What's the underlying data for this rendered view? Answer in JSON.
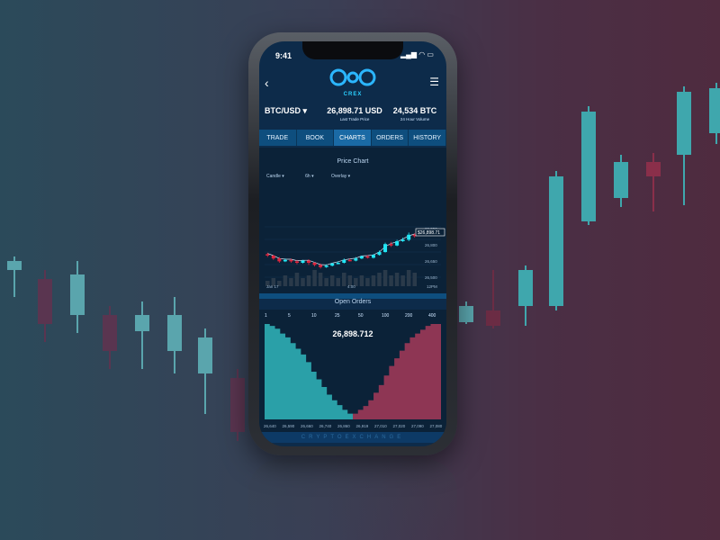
{
  "status": {
    "time": "9:41",
    "icons": "▂▄▆ ◠ ▭"
  },
  "nav": {
    "back_icon": "‹",
    "menu_icon": "☰"
  },
  "brand": {
    "logo_text": "CREX",
    "footer": "CRYPTOEXCHANGE"
  },
  "ticker": {
    "pair": "BTC/USD",
    "last_trade_price": "26,898.71 USD",
    "last_trade_label": "Last Trade Price",
    "volume": "24,534 BTC",
    "volume_label": "24 Hour Volume"
  },
  "tabs": [
    {
      "label": "TRADE",
      "active": false
    },
    {
      "label": "BOOK",
      "active": false
    },
    {
      "label": "CHARTS",
      "active": true
    },
    {
      "label": "ORDERS",
      "active": false
    },
    {
      "label": "HISTORY",
      "active": false
    }
  ],
  "price_chart": {
    "title": "Price Chart",
    "controls": {
      "candle": "Candle",
      "interval": "6h",
      "overlay": "Overlay"
    },
    "price_tag": "$26,898.71",
    "y_labels": [
      "26,950",
      "26,800",
      "26,650",
      "26,500",
      "26,350"
    ],
    "x_labels": [
      "Jan 17",
      "4:00",
      "12PM"
    ],
    "candles": [
      {
        "o": 26620,
        "c": 26600,
        "h": 26640,
        "l": 26580
      },
      {
        "o": 26600,
        "c": 26560,
        "h": 26610,
        "l": 26540
      },
      {
        "o": 26560,
        "c": 26520,
        "h": 26580,
        "l": 26500
      },
      {
        "o": 26520,
        "c": 26540,
        "h": 26560,
        "l": 26510
      },
      {
        "o": 26540,
        "c": 26520,
        "h": 26560,
        "l": 26500
      },
      {
        "o": 26520,
        "c": 26500,
        "h": 26540,
        "l": 26480
      },
      {
        "o": 26500,
        "c": 26530,
        "h": 26540,
        "l": 26490
      },
      {
        "o": 26530,
        "c": 26500,
        "h": 26550,
        "l": 26470
      },
      {
        "o": 26500,
        "c": 26470,
        "h": 26510,
        "l": 26450
      },
      {
        "o": 26470,
        "c": 26440,
        "h": 26490,
        "l": 26420
      },
      {
        "o": 26440,
        "c": 26460,
        "h": 26480,
        "l": 26430
      },
      {
        "o": 26460,
        "c": 26490,
        "h": 26500,
        "l": 26450
      },
      {
        "o": 26490,
        "c": 26500,
        "h": 26520,
        "l": 26480
      },
      {
        "o": 26500,
        "c": 26540,
        "h": 26560,
        "l": 26490
      },
      {
        "o": 26540,
        "c": 26530,
        "h": 26560,
        "l": 26520
      },
      {
        "o": 26530,
        "c": 26560,
        "h": 26580,
        "l": 26520
      },
      {
        "o": 26560,
        "c": 26590,
        "h": 26600,
        "l": 26550
      },
      {
        "o": 26590,
        "c": 26570,
        "h": 26610,
        "l": 26560
      },
      {
        "o": 26570,
        "c": 26610,
        "h": 26620,
        "l": 26560
      },
      {
        "o": 26610,
        "c": 26650,
        "h": 26670,
        "l": 26600
      },
      {
        "o": 26650,
        "c": 26760,
        "h": 26780,
        "l": 26640
      },
      {
        "o": 26760,
        "c": 26740,
        "h": 26790,
        "l": 26720
      },
      {
        "o": 26740,
        "c": 26800,
        "h": 26820,
        "l": 26730
      },
      {
        "o": 26800,
        "c": 26820,
        "h": 26850,
        "l": 26790
      },
      {
        "o": 26820,
        "c": 26890,
        "h": 26920,
        "l": 26800
      },
      {
        "o": 26890,
        "c": 26870,
        "h": 26910,
        "l": 26850
      }
    ],
    "volumes": [
      2,
      3,
      2,
      4,
      3,
      5,
      3,
      4,
      6,
      5,
      3,
      4,
      3,
      5,
      4,
      3,
      4,
      3,
      4,
      5,
      6,
      4,
      5,
      4,
      6,
      5
    ]
  },
  "open_orders": {
    "title": "Open Orders",
    "depth_labels": [
      "1",
      "5",
      "10",
      "25",
      "50",
      "100",
      "200",
      "400"
    ],
    "mid_price": "26,898.712",
    "x_labels": [
      "26,640",
      "26,590",
      "26,660",
      "26,740",
      "26,860",
      "26,919",
      "27,010",
      "27,020",
      "27,090",
      "27,080"
    ],
    "bids": [
      1.0,
      0.98,
      0.95,
      0.9,
      0.86,
      0.8,
      0.74,
      0.68,
      0.6,
      0.5,
      0.42,
      0.34,
      0.26,
      0.2,
      0.15,
      0.1,
      0.06
    ],
    "asks": [
      0.06,
      0.1,
      0.14,
      0.2,
      0.28,
      0.36,
      0.46,
      0.56,
      0.64,
      0.72,
      0.8,
      0.86,
      0.9,
      0.94,
      0.98,
      1.0,
      1.0
    ]
  },
  "colors": {
    "up": "#21e6f5",
    "down": "#e0263e",
    "bid_fill": "#2aa0a8",
    "ask_fill": "#8e3654",
    "accent": "#1a6aa5"
  }
}
